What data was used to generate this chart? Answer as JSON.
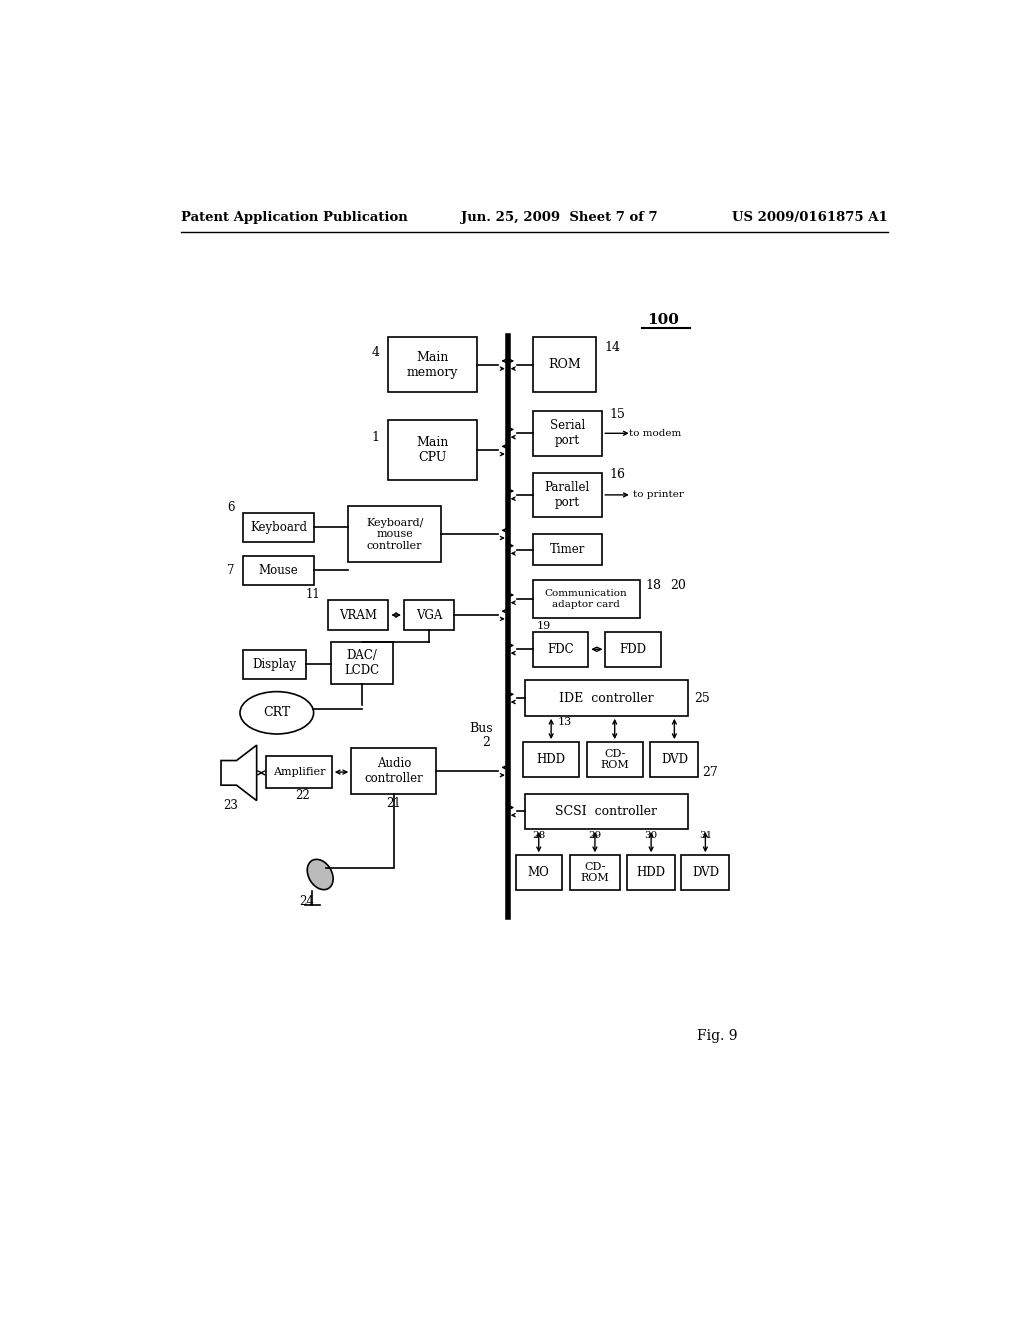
{
  "header_left": "Patent Application Publication",
  "header_center": "Jun. 25, 2009  Sheet 7 of 7",
  "header_right": "US 2009/0161875 A1",
  "fig_label": "Fig. 9",
  "background_color": "#ffffff",
  "line_color": "#000000",
  "box_color": "#ffffff"
}
